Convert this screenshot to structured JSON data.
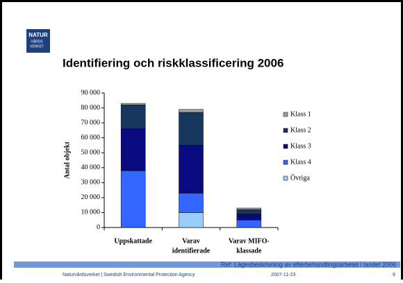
{
  "slide": {
    "logo": [
      "NATUR",
      "VÅRDS",
      "VERKET"
    ],
    "ref": "Ref: Lägesbeskrivning av efterbehandlingsarbetet i landet 2006",
    "footer": "Naturvårdsverket | Swedish Environmental Protection Agency",
    "date": "2007-11-23",
    "page": "9"
  },
  "chart_data": {
    "type": "stacked_bar",
    "title": "Identifiering och riskklassificering 2006",
    "y_label": "Antal objekt",
    "categories": [
      [
        "Uppskattade"
      ],
      [
        "Varav",
        "identifierade"
      ],
      [
        "Varav MIFO-",
        "klassade"
      ]
    ],
    "series": [
      {
        "name": "Övriga",
        "color": "#99ccff",
        "values": [
          0,
          10000,
          0
        ]
      },
      {
        "name": "Klass 4",
        "color": "#3366ff",
        "values": [
          38000,
          13000,
          5000
        ]
      },
      {
        "name": "Klass 3",
        "color": "#0a0a80",
        "values": [
          28000,
          32000,
          4000
        ]
      },
      {
        "name": "Klass 2",
        "color": "#17375e",
        "values": [
          16000,
          22000,
          3000
        ]
      },
      {
        "name": "Klass 1",
        "color": "#a0a0a0",
        "values": [
          1000,
          2000,
          1000
        ]
      }
    ],
    "ylim": [
      0,
      90000
    ],
    "yticks": [
      0,
      {
        "value": 10000,
        "label": "10 000"
      },
      {
        "value": 20000,
        "label": "20 000"
      },
      {
        "value": 30000,
        "label": "30 000"
      },
      {
        "value": 40000,
        "label": "40 000"
      },
      {
        "value": 50000,
        "label": "50 000"
      },
      {
        "value": 60000,
        "label": "60 000"
      },
      {
        "value": 70000,
        "label": "70 000"
      },
      {
        "value": 80000,
        "label": "80 000"
      },
      {
        "value": 90000,
        "label": "90 000"
      }
    ],
    "legend": "right"
  }
}
